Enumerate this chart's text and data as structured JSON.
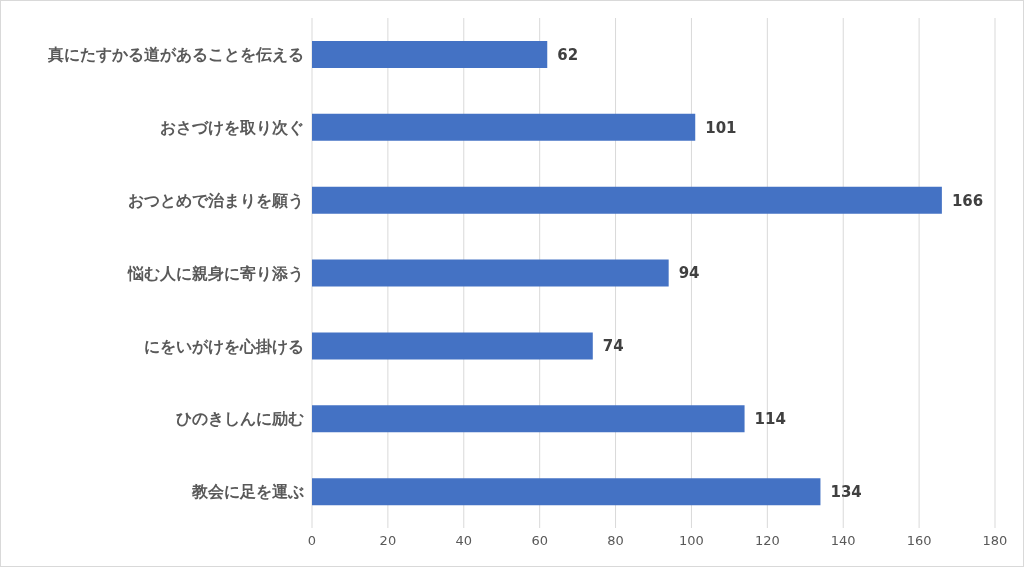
{
  "chart_data": {
    "type": "bar",
    "orientation": "horizontal",
    "categories": [
      "真にたすかる道があることを伝える",
      "おさづけを取り次ぐ",
      "おつとめで治まりを願う",
      "悩む人に親身に寄り添う",
      "にをいがけを心掛ける",
      "ひのきしんに励む",
      "教会に足を運ぶ"
    ],
    "values": [
      62,
      101,
      166,
      94,
      74,
      114,
      134
    ],
    "color": "#4472c4",
    "data_labels": true,
    "xlim": [
      0,
      180
    ],
    "xticks": [
      0,
      20,
      40,
      60,
      80,
      100,
      120,
      140,
      160,
      180
    ],
    "grid": "x"
  }
}
